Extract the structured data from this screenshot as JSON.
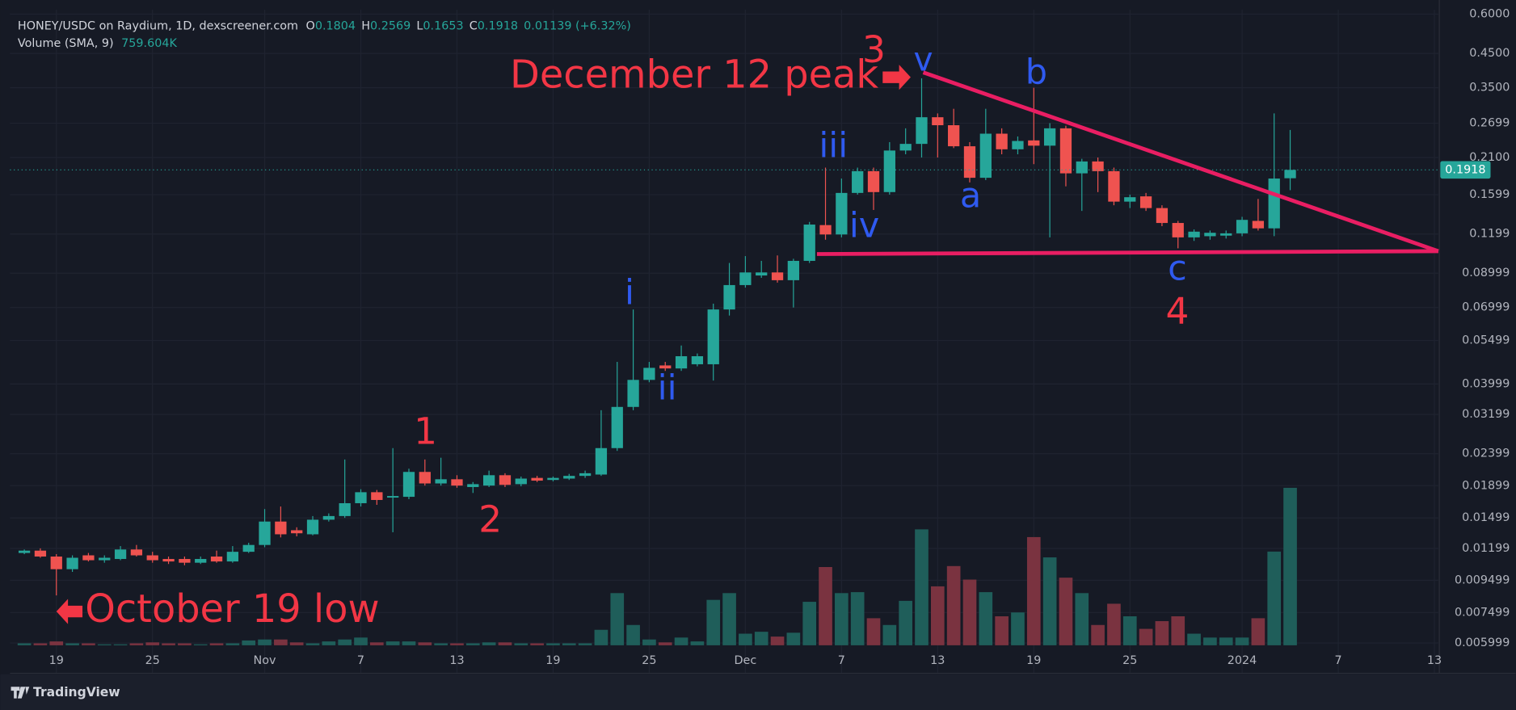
{
  "chart_data": {
    "type": "candlestick",
    "title": "HONEY/USDC on Raydium, 1D, dexscreener.com",
    "ohlc_labels": [
      "O",
      "H",
      "L",
      "C"
    ],
    "change": "0.01139 (+6.32%)",
    "volume_label": "Volume (SMA, 9)",
    "volume_sma": "759.604K",
    "footer": "TradingView",
    "log_scale": true,
    "grid": true,
    "up_color": "#26a69a",
    "down_color": "#ef5350",
    "volume_up_color": "#1f5e5a",
    "volume_down_color": "#7a3340",
    "ylim": [
      0.0059,
      0.62
    ],
    "yticks": [
      {
        "value": 0.6,
        "label": "0.6000"
      },
      {
        "value": 0.45,
        "label": "0.4500"
      },
      {
        "value": 0.35,
        "label": "0.3500"
      },
      0.2699,
      {
        "value": 0.21,
        "label": "0.2100"
      },
      0.1599,
      0.1199,
      0.08999,
      0.06999,
      0.05499,
      0.03999,
      0.03199,
      0.02399,
      0.01899,
      0.01499,
      0.01199,
      0.009499,
      0.007499,
      0.005999
    ],
    "categories": [
      null,
      null,
      "19",
      null,
      null,
      null,
      null,
      null,
      "25",
      null,
      null,
      null,
      null,
      null,
      null,
      "Nov",
      null,
      null,
      null,
      null,
      null,
      "7",
      null,
      null,
      null,
      null,
      null,
      "13",
      null,
      null,
      null,
      null,
      null,
      "19",
      null,
      null,
      null,
      null,
      null,
      "25",
      null,
      null,
      null,
      null,
      null,
      "Dec",
      null,
      null,
      null,
      null,
      null,
      "7",
      null,
      null,
      null,
      null,
      null,
      "13",
      null,
      null,
      null,
      null,
      null,
      "19",
      null,
      null,
      null,
      null,
      null,
      "25",
      null,
      null,
      null,
      null,
      null,
      null,
      "2024",
      null,
      null,
      null,
      null,
      null,
      "7",
      null,
      null,
      null,
      null,
      null,
      "13"
    ],
    "open": [
      0.0116,
      0.0118,
      0.0113,
      0.0103,
      0.0114,
      0.011,
      0.0111,
      0.0119,
      0.0114,
      0.0111,
      0.0111,
      0.0108,
      0.0113,
      0.0109,
      0.0117,
      0.0123,
      0.0146,
      0.0137,
      0.0133,
      0.0148,
      0.0152,
      0.0167,
      0.0181,
      0.0174,
      0.0175,
      0.021,
      0.0193,
      0.0199,
      0.0188,
      0.019,
      0.0205,
      0.0192,
      0.0201,
      0.0198,
      0.02,
      0.0204,
      0.0206,
      0.025,
      0.0338,
      0.0412,
      0.0458,
      0.0448,
      0.0462,
      0.0462,
      0.069,
      0.0825,
      0.0885,
      0.0905,
      0.0855,
      0.0985,
      0.128,
      0.1195,
      0.162,
      0.19,
      0.163,
      0.221,
      0.232,
      0.282,
      0.266,
      0.228,
      0.181,
      0.25,
      0.223,
      0.238,
      0.229,
      0.26,
      0.187,
      0.204,
      0.19,
      0.152,
      0.158,
      0.145,
      0.13,
      0.117,
      0.118,
      0.1185,
      0.1205,
      0.132,
      0.125,
      0.1804,
      null,
      null,
      null,
      null,
      null,
      null,
      null,
      null,
      null
    ],
    "high": [
      0.0119,
      0.012,
      0.0115,
      0.0114,
      0.0116,
      0.0114,
      0.0122,
      0.0123,
      0.0117,
      0.0113,
      0.0113,
      0.0113,
      0.0118,
      0.0122,
      0.0125,
      0.016,
      0.0163,
      0.014,
      0.0152,
      0.0155,
      0.023,
      0.0185,
      0.0184,
      0.025,
      0.0215,
      0.023,
      0.0233,
      0.0205,
      0.0195,
      0.0212,
      0.0208,
      0.0203,
      0.0204,
      0.0203,
      0.0207,
      0.0212,
      0.033,
      0.047,
      0.069,
      0.047,
      0.047,
      0.053,
      0.05,
      0.072,
      0.097,
      0.102,
      0.0985,
      0.1025,
      0.1,
      0.131,
      0.195,
      0.18,
      0.195,
      0.195,
      0.235,
      0.26,
      0.375,
      0.29,
      0.3,
      0.235,
      0.3,
      0.26,
      0.245,
      0.35,
      0.27,
      0.265,
      0.208,
      0.21,
      0.195,
      0.16,
      0.162,
      0.148,
      0.132,
      0.124,
      0.123,
      0.123,
      0.136,
      0.155,
      0.29,
      0.2569,
      null,
      null,
      null,
      null,
      null,
      null,
      null,
      null,
      null
    ],
    "low": [
      0.0115,
      0.0112,
      0.0085,
      0.0101,
      0.0109,
      0.0108,
      0.011,
      0.0113,
      0.0108,
      0.0107,
      0.0106,
      0.0107,
      0.0108,
      0.0108,
      0.0116,
      0.0121,
      0.013,
      0.0131,
      0.0132,
      0.0146,
      0.015,
      0.0163,
      0.0165,
      0.0135,
      0.0172,
      0.019,
      0.019,
      0.0187,
      0.018,
      0.0188,
      0.0188,
      0.0189,
      0.0195,
      0.0196,
      0.0198,
      0.0201,
      0.0204,
      0.0245,
      0.033,
      0.0405,
      0.044,
      0.044,
      0.0455,
      0.041,
      0.066,
      0.081,
      0.087,
      0.084,
      0.07,
      0.097,
      0.115,
      0.117,
      0.16,
      0.143,
      0.16,
      0.215,
      0.21,
      0.21,
      0.225,
      0.175,
      0.178,
      0.215,
      0.215,
      0.2,
      0.117,
      0.17,
      0.142,
      0.163,
      0.148,
      0.145,
      0.142,
      0.127,
      0.108,
      0.114,
      0.115,
      0.116,
      0.118,
      0.123,
      0.118,
      0.1653,
      null,
      null,
      null,
      null,
      null,
      null,
      null,
      null,
      null
    ],
    "close": [
      0.0118,
      0.0113,
      0.0103,
      0.0112,
      0.011,
      0.0112,
      0.0119,
      0.0114,
      0.011,
      0.0109,
      0.0108,
      0.0111,
      0.0109,
      0.0117,
      0.0123,
      0.0146,
      0.0133,
      0.0134,
      0.0148,
      0.0152,
      0.0167,
      0.0181,
      0.0171,
      0.0176,
      0.021,
      0.0193,
      0.0199,
      0.019,
      0.0192,
      0.0205,
      0.0191,
      0.02,
      0.0197,
      0.0201,
      0.0204,
      0.0208,
      0.025,
      0.0338,
      0.0412,
      0.045,
      0.0448,
      0.049,
      0.049,
      0.069,
      0.0825,
      0.0905,
      0.0905,
      0.0855,
      0.0985,
      0.1285,
      0.1195,
      0.162,
      0.19,
      0.163,
      0.221,
      0.232,
      0.282,
      0.266,
      0.228,
      0.181,
      0.25,
      0.223,
      0.237,
      0.229,
      0.26,
      0.187,
      0.204,
      0.19,
      0.152,
      0.157,
      0.145,
      0.13,
      0.117,
      0.122,
      0.121,
      0.1205,
      0.133,
      0.125,
      0.18,
      0.1918,
      null,
      null,
      null,
      null,
      null,
      null,
      null,
      null,
      null
    ],
    "volume": [
      36,
      36,
      72,
      36,
      36,
      18,
      18,
      36,
      54,
      36,
      36,
      18,
      36,
      36,
      90,
      108,
      108,
      54,
      36,
      72,
      108,
      144,
      54,
      72,
      72,
      54,
      36,
      36,
      36,
      54,
      54,
      36,
      36,
      36,
      36,
      36,
      288,
      972,
      378,
      108,
      54,
      144,
      72,
      846,
      972,
      216,
      252,
      162,
      234,
      810,
      1458,
      972,
      990,
      504,
      378,
      828,
      2160,
      1098,
      1476,
      1224,
      990,
      540,
      612,
      2016,
      1638,
      1260,
      972,
      378,
      774,
      540,
      306,
      450,
      540,
      216,
      144,
      144,
      144,
      504,
      1746,
      2934,
      null,
      null,
      null,
      null,
      null,
      null,
      null,
      null,
      null
    ],
    "annotations": [
      {
        "text": "December 12 peak",
        "color": "#f23645"
      },
      {
        "text": "3",
        "color": "#f23645"
      },
      {
        "text": "v",
        "color": "#2f5af0"
      },
      {
        "text": "b",
        "color": "#2f5af0"
      },
      {
        "text": "iii",
        "color": "#2f5af0"
      },
      {
        "text": "a",
        "color": "#2f5af0"
      },
      {
        "text": "iv",
        "color": "#2f5af0"
      },
      {
        "text": "c",
        "color": "#2f5af0"
      },
      {
        "text": "4",
        "color": "#f23645"
      },
      {
        "text": "i",
        "color": "#2f5af0"
      },
      {
        "text": "ii",
        "color": "#2f5af0"
      },
      {
        "text": "1",
        "color": "#f23645"
      },
      {
        "text": "2",
        "color": "#f23645"
      },
      {
        "text": "October 19 low",
        "color": "#f23645"
      }
    ]
  }
}
